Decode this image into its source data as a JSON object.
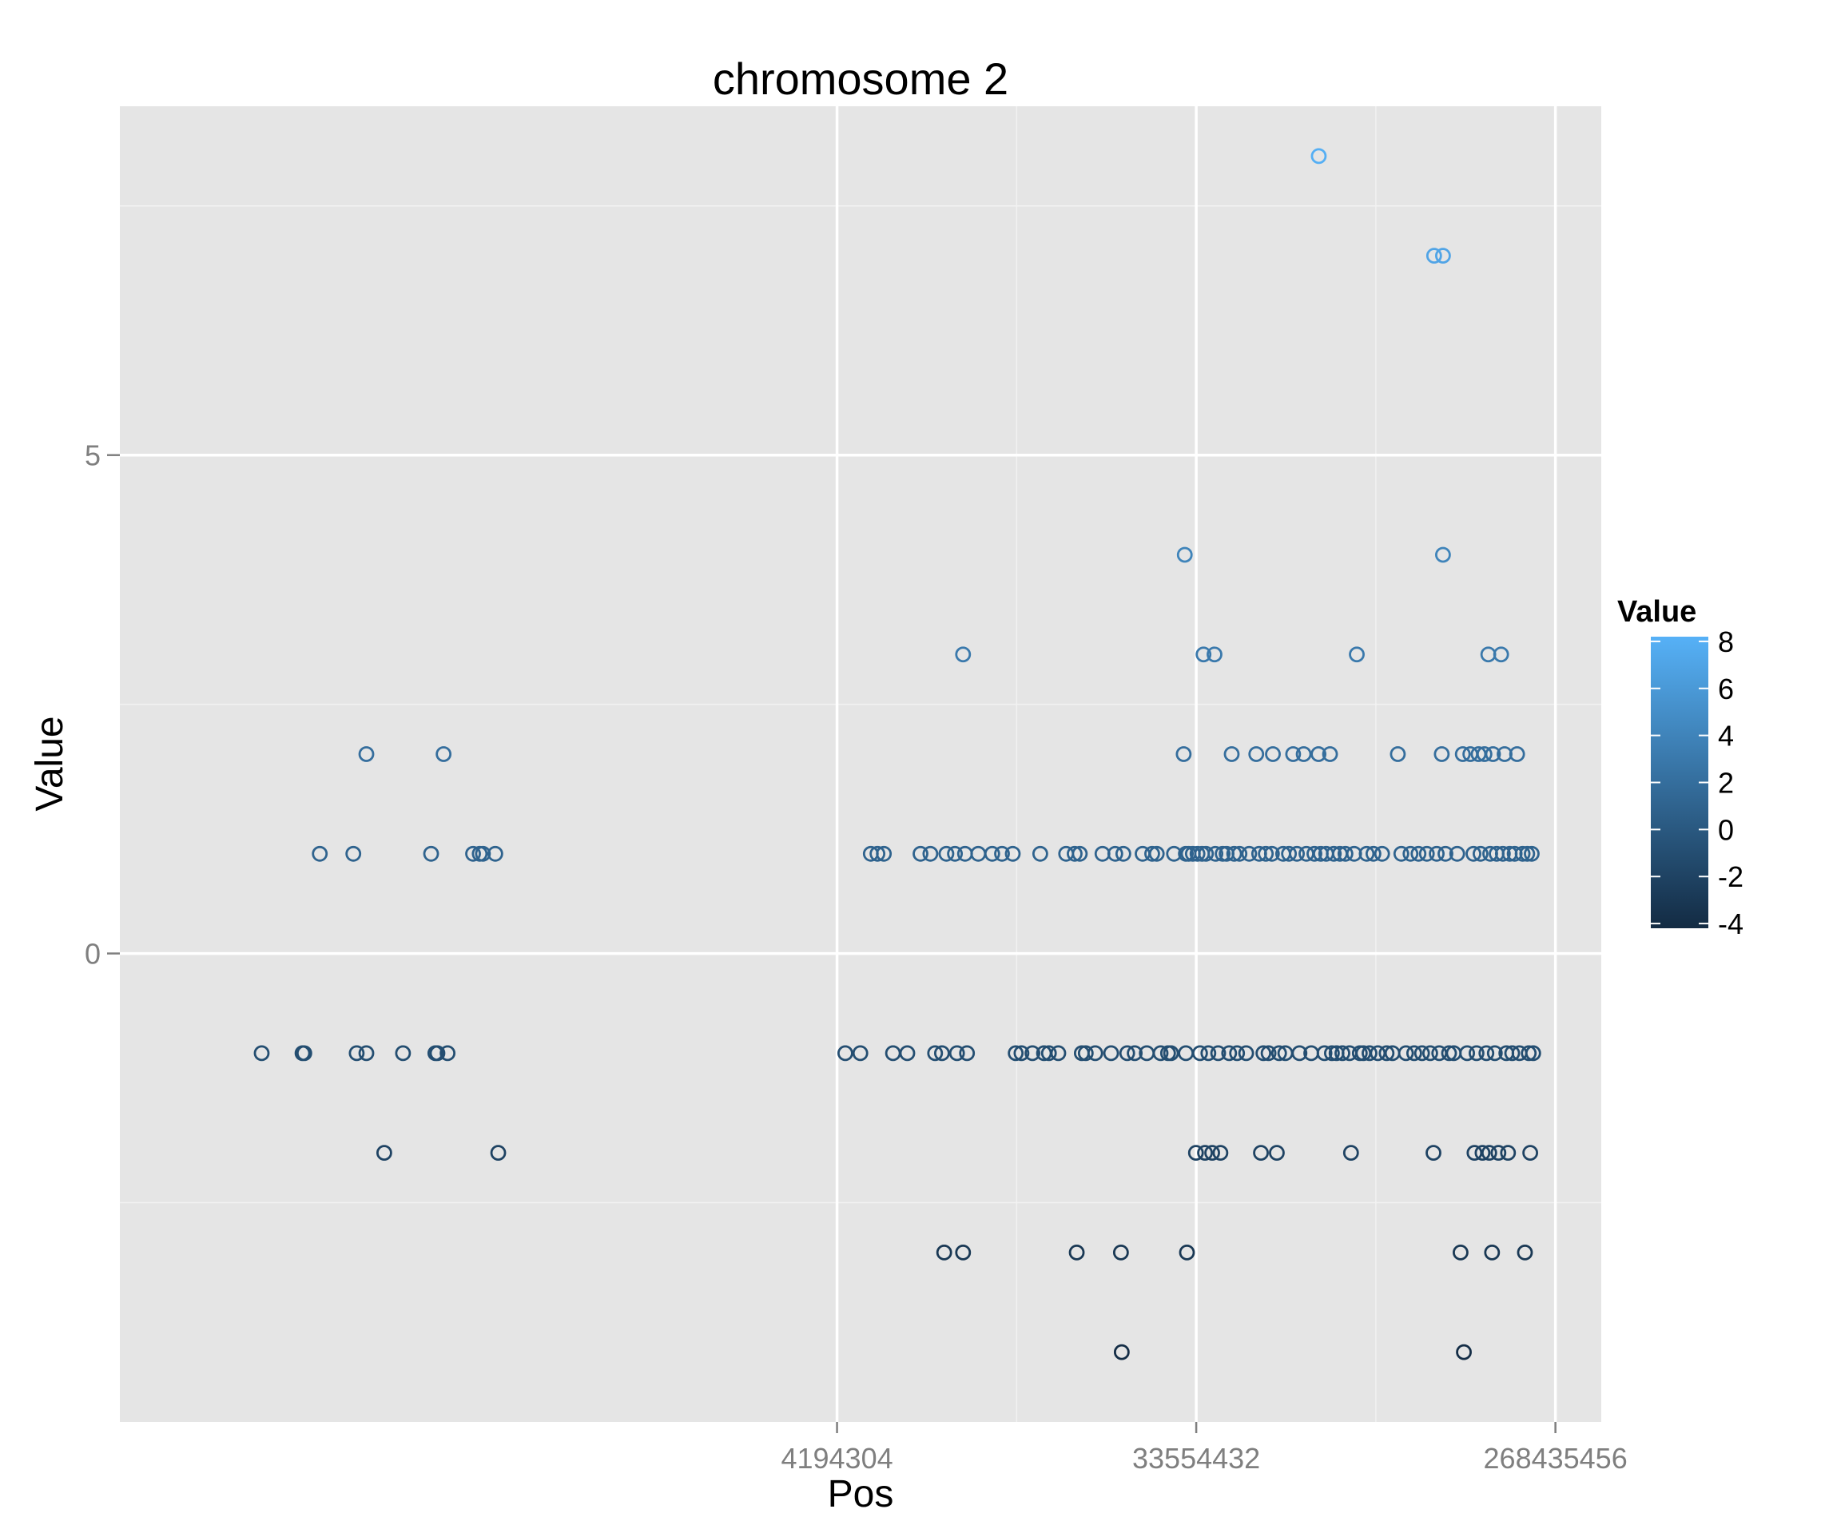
{
  "chart_data": {
    "type": "scatter",
    "title": "chromosome 2",
    "xlabel": "Pos",
    "ylabel": "Value",
    "x_scale": "log2",
    "xlim": [
      66000,
      350000000
    ],
    "ylim": [
      -4.7,
      8.5
    ],
    "x_ticks": [
      4194304,
      33554432,
      268435456
    ],
    "x_tick_labels": [
      "4194304",
      "33554432",
      "268435456"
    ],
    "y_ticks": [
      0,
      5
    ],
    "y_tick_labels": [
      "0",
      "5"
    ],
    "grid": true,
    "legend": {
      "title": "Value",
      "position": "right",
      "type": "colorbar",
      "min": -4.2,
      "max": 8.2,
      "ticks": [
        8,
        6,
        4,
        2,
        0,
        -2,
        -4
      ],
      "tick_labels": [
        "8",
        "6",
        "4",
        "2",
        "0",
        "-2",
        "-4"
      ],
      "color_low": "#132B43",
      "color_high": "#56B1F7"
    },
    "points": [
      [
        150000,
        -1
      ],
      [
        190000,
        -1
      ],
      [
        192000,
        -1
      ],
      [
        260000,
        -1
      ],
      [
        275000,
        -1
      ],
      [
        340000,
        -1
      ],
      [
        410000,
        -1
      ],
      [
        415000,
        -1
      ],
      [
        440000,
        -1
      ],
      [
        210000,
        1
      ],
      [
        255000,
        1
      ],
      [
        275000,
        2
      ],
      [
        305000,
        -2
      ],
      [
        400000,
        1
      ],
      [
        430000,
        2
      ],
      [
        510000,
        1
      ],
      [
        530000,
        1
      ],
      [
        540000,
        1
      ],
      [
        580000,
        1
      ],
      [
        590000,
        -2
      ],
      [
        4400000,
        -1
      ],
      [
        4800000,
        -1
      ],
      [
        5100000,
        1
      ],
      [
        5300000,
        1
      ],
      [
        5500000,
        1
      ],
      [
        5800000,
        -1
      ],
      [
        6300000,
        -1
      ],
      [
        6800000,
        1
      ],
      [
        7200000,
        1
      ],
      [
        7400000,
        -1
      ],
      [
        7700000,
        -1
      ],
      [
        7800000,
        -3
      ],
      [
        7900000,
        1
      ],
      [
        8300000,
        1
      ],
      [
        8400000,
        -1
      ],
      [
        8700000,
        3
      ],
      [
        8700000,
        -3
      ],
      [
        8800000,
        1
      ],
      [
        8900000,
        -1
      ],
      [
        9500000,
        1
      ],
      [
        10300000,
        1
      ],
      [
        10900000,
        1
      ],
      [
        11600000,
        1
      ],
      [
        11800000,
        -1
      ],
      [
        12200000,
        -1
      ],
      [
        13000000,
        -1
      ],
      [
        13600000,
        1
      ],
      [
        13900000,
        -1
      ],
      [
        14300000,
        -1
      ],
      [
        15100000,
        -1
      ],
      [
        15800000,
        1
      ],
      [
        16600000,
        1
      ],
      [
        16800000,
        -3
      ],
      [
        17100000,
        1
      ],
      [
        17300000,
        -1
      ],
      [
        17700000,
        -1
      ],
      [
        18700000,
        -1
      ],
      [
        19500000,
        1
      ],
      [
        20500000,
        -1
      ],
      [
        21000000,
        1
      ],
      [
        21700000,
        -3
      ],
      [
        21800000,
        -4
      ],
      [
        22000000,
        1
      ],
      [
        22500000,
        -1
      ],
      [
        23500000,
        -1
      ],
      [
        24600000,
        1
      ],
      [
        25200000,
        -1
      ],
      [
        26000000,
        1
      ],
      [
        26700000,
        1
      ],
      [
        27300000,
        -1
      ],
      [
        28500000,
        -1
      ],
      [
        29000000,
        -1
      ],
      [
        29500000,
        1
      ],
      [
        31200000,
        2
      ],
      [
        31400000,
        4
      ],
      [
        31600000,
        1
      ],
      [
        31600000,
        -1
      ],
      [
        31800000,
        -3
      ],
      [
        32100000,
        1
      ],
      [
        32900000,
        1
      ],
      [
        33500000,
        -2
      ],
      [
        33800000,
        1
      ],
      [
        34300000,
        -1
      ],
      [
        34700000,
        1
      ],
      [
        35000000,
        3
      ],
      [
        35300000,
        -2
      ],
      [
        35500000,
        1
      ],
      [
        36000000,
        -1
      ],
      [
        36800000,
        -2
      ],
      [
        37300000,
        3
      ],
      [
        37500000,
        1
      ],
      [
        38100000,
        -1
      ],
      [
        38600000,
        -2
      ],
      [
        39100000,
        1
      ],
      [
        40000000,
        1
      ],
      [
        40600000,
        -1
      ],
      [
        41200000,
        2
      ],
      [
        41800000,
        1
      ],
      [
        42500000,
        -1
      ],
      [
        43100000,
        1
      ],
      [
        44800000,
        -1
      ],
      [
        45600000,
        1
      ],
      [
        47500000,
        2
      ],
      [
        48300000,
        1
      ],
      [
        48800000,
        -2
      ],
      [
        49500000,
        -1
      ],
      [
        50200000,
        1
      ],
      [
        51000000,
        -1
      ],
      [
        52000000,
        1
      ],
      [
        52300000,
        2
      ],
      [
        53500000,
        -2
      ],
      [
        54200000,
        -1
      ],
      [
        55500000,
        1
      ],
      [
        56200000,
        -1
      ],
      [
        57400000,
        1
      ],
      [
        58800000,
        2
      ],
      [
        60100000,
        1
      ],
      [
        61000000,
        -1
      ],
      [
        62500000,
        2
      ],
      [
        63500000,
        1
      ],
      [
        65300000,
        -1
      ],
      [
        66500000,
        1
      ],
      [
        68100000,
        2
      ],
      [
        68200000,
        8
      ],
      [
        69000000,
        1
      ],
      [
        70500000,
        -1
      ],
      [
        71200000,
        1
      ],
      [
        72800000,
        2
      ],
      [
        73600000,
        -1
      ],
      [
        74400000,
        1
      ],
      [
        75600000,
        -1
      ],
      [
        77100000,
        1
      ],
      [
        78200000,
        -1
      ],
      [
        79600000,
        1
      ],
      [
        81500000,
        -1
      ],
      [
        82200000,
        -2
      ],
      [
        83700000,
        1
      ],
      [
        85000000,
        3
      ],
      [
        86500000,
        -1
      ],
      [
        88300000,
        -1
      ],
      [
        90000000,
        1
      ],
      [
        91500000,
        -1
      ],
      [
        93600000,
        1
      ],
      [
        96000000,
        -1
      ],
      [
        98400000,
        1
      ],
      [
        101000000,
        -1
      ],
      [
        104500000,
        -1
      ],
      [
        107800000,
        2
      ],
      [
        110000000,
        1
      ],
      [
        113000000,
        -1
      ],
      [
        116000000,
        1
      ],
      [
        118500000,
        -1
      ],
      [
        121500000,
        1
      ],
      [
        124000000,
        -1
      ],
      [
        127500000,
        1
      ],
      [
        130000000,
        -1
      ],
      [
        132500000,
        -2
      ],
      [
        133000000,
        7
      ],
      [
        135000000,
        1
      ],
      [
        137000000,
        -1
      ],
      [
        139000000,
        2
      ],
      [
        140000000,
        4
      ],
      [
        140000000,
        7
      ],
      [
        142000000,
        1
      ],
      [
        145000000,
        -1
      ],
      [
        149000000,
        -1
      ],
      [
        152000000,
        1
      ],
      [
        155000000,
        -3
      ],
      [
        157000000,
        2
      ],
      [
        158000000,
        -4
      ],
      [
        161000000,
        -1
      ],
      [
        164000000,
        2
      ],
      [
        167000000,
        1
      ],
      [
        168000000,
        -2
      ],
      [
        170000000,
        -1
      ],
      [
        172000000,
        2
      ],
      [
        174000000,
        1
      ],
      [
        176000000,
        -2
      ],
      [
        178000000,
        2
      ],
      [
        180000000,
        -1
      ],
      [
        182000000,
        3
      ],
      [
        183000000,
        -2
      ],
      [
        184000000,
        1
      ],
      [
        186000000,
        -3
      ],
      [
        187000000,
        2
      ],
      [
        189000000,
        -1
      ],
      [
        191000000,
        1
      ],
      [
        193000000,
        -2
      ],
      [
        196000000,
        3
      ],
      [
        198000000,
        1
      ],
      [
        200000000,
        2
      ],
      [
        202000000,
        -1
      ],
      [
        204000000,
        -2
      ],
      [
        206000000,
        1
      ],
      [
        209000000,
        -1
      ],
      [
        212000000,
        1
      ],
      [
        215000000,
        2
      ],
      [
        218000000,
        -1
      ],
      [
        222000000,
        1
      ],
      [
        225000000,
        -3
      ],
      [
        228000000,
        1
      ],
      [
        230000000,
        -1
      ],
      [
        232000000,
        -2
      ],
      [
        234000000,
        1
      ],
      [
        236000000,
        -1
      ]
    ]
  }
}
